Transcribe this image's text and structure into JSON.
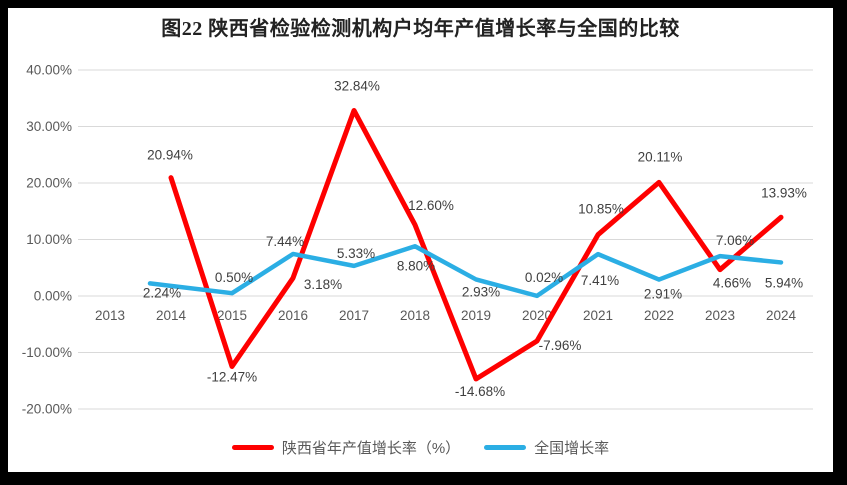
{
  "chart_data": {
    "type": "line",
    "title": "图22 陕西省检验检测机构户均年产值增长率与全国的比较",
    "categories": [
      "2013",
      "2014",
      "2015",
      "2016",
      "2017",
      "2018",
      "2019",
      "2020",
      "2021",
      "2022",
      "2023",
      "2024"
    ],
    "ylim": [
      -20,
      40
    ],
    "grid": true,
    "legend_position": "bottom",
    "y_ticks": [
      {
        "value": 40,
        "label": "40.00%"
      },
      {
        "value": 30,
        "label": "30.00%"
      },
      {
        "value": 20,
        "label": "20.00%"
      },
      {
        "value": 10,
        "label": "10.00%"
      },
      {
        "value": 0,
        "label": "0.00%"
      },
      {
        "value": -10,
        "label": "-10.00%"
      },
      {
        "value": -20,
        "label": "-20.00%"
      }
    ],
    "series": [
      {
        "id": "shaanxi",
        "name": "陕西省年产值增长率（%）",
        "color": "#FE0000",
        "stroke_width": 5,
        "start_index": 1,
        "values": [
          20.94,
          -12.47,
          3.18,
          32.84,
          12.6,
          -14.68,
          -7.96,
          10.85,
          20.11,
          4.66,
          13.93
        ],
        "labels": [
          "20.94%",
          "-12.47%",
          "3.18%",
          "32.84%",
          "12.60%",
          "-14.68%",
          "-7.96%",
          "10.85%",
          "20.11%",
          "4.66%",
          "13.93%"
        ],
        "label_offsets": [
          [
            -1,
            -18
          ],
          [
            0,
            15
          ],
          [
            30,
            11
          ],
          [
            3,
            -20
          ],
          [
            16,
            -15
          ],
          [
            4,
            17
          ],
          [
            23,
            9
          ],
          [
            3,
            -21
          ],
          [
            1,
            -21
          ],
          [
            12,
            18
          ],
          [
            3,
            -20
          ]
        ]
      },
      {
        "id": "national",
        "name": "全国增长率",
        "color": "#2BAEE4",
        "stroke_width": 4.5,
        "start_index": 1,
        "first_point_x": 150,
        "values": [
          2.24,
          0.5,
          7.44,
          5.33,
          8.8,
          2.93,
          0.02,
          7.41,
          2.91,
          7.06,
          5.94
        ],
        "labels": [
          "2.24%",
          "0.50%",
          "7.44%",
          "5.33%",
          "8.80%",
          "2.93%",
          "0.02%",
          "7.41%",
          "2.91%",
          "7.06%",
          "5.94%"
        ],
        "label_offsets": [
          [
            12,
            14
          ],
          [
            2,
            -11
          ],
          [
            -8,
            -8
          ],
          [
            2,
            -8
          ],
          [
            1,
            24
          ],
          [
            5,
            17
          ],
          [
            7,
            -14
          ],
          [
            2,
            31
          ],
          [
            4,
            19
          ],
          [
            15,
            -11
          ],
          [
            3,
            25
          ]
        ]
      }
    ],
    "layout": {
      "x0": 110,
      "x_step": 61,
      "zero_y": 296,
      "y_per_unit": 5.65,
      "grid_x0": 78,
      "grid_x1": 813,
      "ytick_x": 72,
      "xlabel_y": 320,
      "grid_color": "#D9D9D9",
      "axis_text_color": "#595959",
      "label_color": "#3F3F3F",
      "tick_font_size": 13.5,
      "label_font_size": 13.5
    }
  }
}
